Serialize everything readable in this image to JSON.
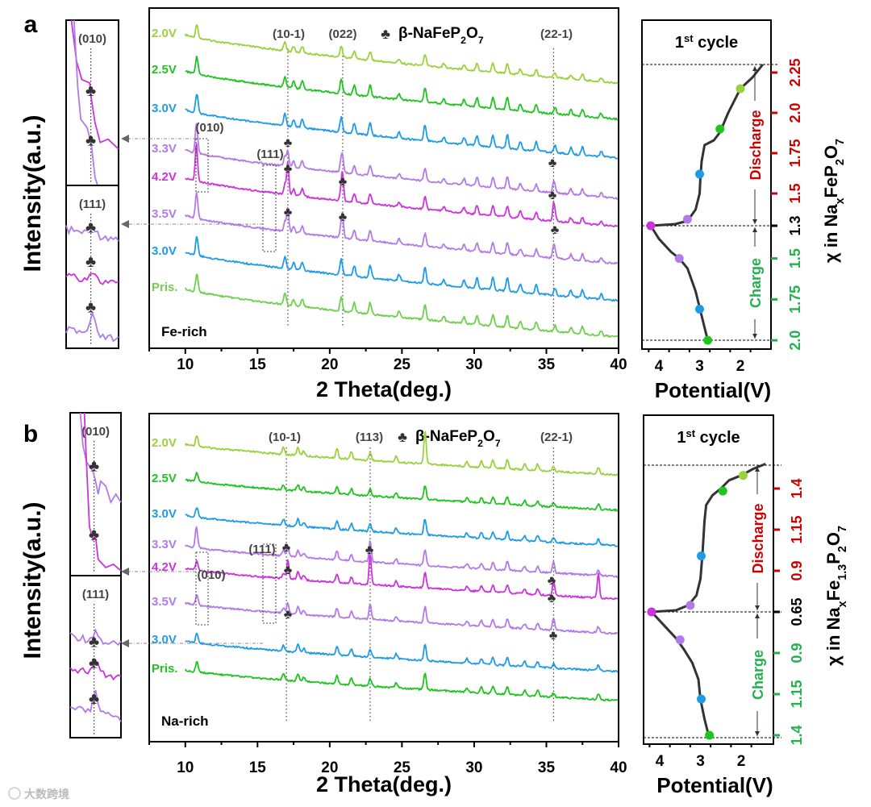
{
  "chart_data": [
    {
      "type": "line",
      "panel_label": "a",
      "title": "",
      "xlabel": "2 Theta(deg.)",
      "ylabel": "Intensity(a.u.)",
      "xlim": [
        7.5,
        40
      ],
      "xticks": [
        "10",
        "15",
        "20",
        "25",
        "30",
        "35",
        "40"
      ],
      "sample_label": "Fe-rich",
      "legend": {
        "symbol": "♣",
        "parts": [
          {
            "t": "β-NaFeP"
          },
          {
            "t": "2",
            "sub": true
          },
          {
            "t": "O"
          },
          {
            "t": "7",
            "sub": true
          }
        ]
      },
      "reflections": [
        {
          "label": "(10-1)",
          "theta": 17.1
        },
        {
          "label": "(022)",
          "theta": 20.9
        },
        {
          "label": "(22-1)",
          "theta": 35.5
        }
      ],
      "box_labels": [
        "(010)",
        "(111)"
      ],
      "base_peaks": [
        [
          10.8,
          22
        ],
        [
          16.9,
          14
        ],
        [
          17.5,
          8
        ],
        [
          18.1,
          10
        ],
        [
          20.8,
          18
        ],
        [
          21.7,
          12
        ],
        [
          22.8,
          14
        ],
        [
          24.8,
          7
        ],
        [
          26.6,
          18
        ],
        [
          27.9,
          6
        ],
        [
          29.3,
          8
        ],
        [
          30.2,
          12
        ],
        [
          31.3,
          14
        ],
        [
          32.3,
          16
        ],
        [
          33.2,
          9
        ],
        [
          34.3,
          10
        ],
        [
          35.6,
          8
        ],
        [
          36.7,
          7
        ],
        [
          37.5,
          9
        ],
        [
          38.8,
          6
        ]
      ],
      "series": [
        {
          "name": "2.0V",
          "color": "#9bd13c",
          "scale": 0.8,
          "extra_peaks": []
        },
        {
          "name": "2.5V",
          "color": "#1fc41f",
          "scale": 1.0,
          "extra_peaks": []
        },
        {
          "name": "3.0V",
          "color": "#1e9be6",
          "scale": 1.1,
          "extra_peaks": []
        },
        {
          "name": "3.3V",
          "color": "#b27ae8",
          "scale": 0.9,
          "extra_peaks": [
            [
              10.75,
              20
            ],
            [
              17.1,
              20
            ],
            [
              20.9,
              14
            ],
            [
              35.5,
              10
            ]
          ]
        },
        {
          "name": "4.2V",
          "color": "#cc33dd",
          "scale": 0.9,
          "extra_peaks": [
            [
              10.75,
              30
            ],
            [
              17.1,
              40
            ],
            [
              20.9,
              28
            ],
            [
              35.5,
              20
            ]
          ]
        },
        {
          "name": "3.5V",
          "color": "#b27ae8",
          "scale": 0.9,
          "extra_peaks": [
            [
              10.75,
              14
            ],
            [
              17.1,
              30
            ],
            [
              20.9,
              22
            ],
            [
              35.5,
              14
            ]
          ]
        },
        {
          "name": "3.0V",
          "color": "#1e9be6",
          "scale": 1.1,
          "extra_peaks": []
        },
        {
          "name": "Pris.",
          "color": "#6fcf4f",
          "scale": 1.0,
          "extra_peaks": []
        }
      ],
      "cycle": {
        "title_parts": [
          "1",
          "st",
          " cycle"
        ],
        "xlabel": "Potential(V)",
        "xticks": [
          "4",
          "3",
          "2"
        ],
        "ylabel_parts": [
          {
            "t": "χ in Na"
          },
          {
            "t": "x",
            "sub": true
          },
          {
            "t": "FeP"
          },
          {
            "t": "2",
            "sub": true
          },
          {
            "t": "O"
          },
          {
            "t": "7",
            "sub": true
          }
        ],
        "discharge_label": "Discharge",
        "charge_label": "Charge",
        "discharge_color": "#cc0000",
        "charge_color": "#22b14c",
        "mid_tick": "1.3",
        "discharge_ticks": [
          "1.5",
          "1.75",
          "2.0",
          "2.25"
        ],
        "charge_ticks": [
          "1.5",
          "1.75",
          "2.0"
        ],
        "discharge_curve": [
          [
            4.2,
            1.3
          ],
          [
            3.6,
            1.31
          ],
          [
            3.3,
            1.33
          ],
          [
            3.1,
            1.4
          ],
          [
            3.0,
            1.5
          ],
          [
            2.98,
            1.6
          ],
          [
            2.95,
            1.7
          ],
          [
            2.88,
            1.8
          ],
          [
            2.65,
            1.83
          ],
          [
            2.5,
            1.88
          ],
          [
            2.3,
            2.0
          ],
          [
            2.1,
            2.1
          ],
          [
            2.0,
            2.15
          ],
          [
            1.7,
            2.22
          ],
          [
            1.45,
            2.3
          ]
        ],
        "charge_curve": [
          [
            4.2,
            1.3
          ],
          [
            4.0,
            1.38
          ],
          [
            3.7,
            1.46
          ],
          [
            3.5,
            1.5
          ],
          [
            3.3,
            1.56
          ],
          [
            3.1,
            1.7
          ],
          [
            3.0,
            1.8
          ],
          [
            2.9,
            1.9
          ],
          [
            2.8,
            2.0
          ]
        ],
        "points": [
          {
            "label": "2.0V",
            "branch": "discharge",
            "V": 2.0,
            "x": 2.15,
            "color": "#9bd13c"
          },
          {
            "label": "2.5V",
            "branch": "discharge",
            "V": 2.5,
            "x": 1.9,
            "color": "#1fc41f"
          },
          {
            "label": "3.0V",
            "branch": "discharge",
            "V": 3.0,
            "x": 1.62,
            "color": "#1e9be6"
          },
          {
            "label": "3.3V",
            "branch": "discharge",
            "V": 3.3,
            "x": 1.34,
            "color": "#b27ae8"
          },
          {
            "label": "4.2V",
            "branch": "discharge",
            "V": 4.2,
            "x": 1.3,
            "color": "#cc33dd"
          },
          {
            "label": "3.5V",
            "branch": "charge",
            "V": 3.5,
            "x": 1.5,
            "color": "#b27ae8"
          },
          {
            "label": "3.0V",
            "branch": "charge",
            "V": 3.0,
            "x": 1.81,
            "color": "#1e9be6"
          },
          {
            "label": "Pris.",
            "branch": "charge",
            "V": 2.8,
            "x": 2.0,
            "color": "#1fc41f"
          }
        ]
      }
    },
    {
      "type": "line",
      "panel_label": "b",
      "title": "",
      "xlabel": "2 Theta(deg.)",
      "ylabel": "Intensity(a.u.)",
      "xlim": [
        7.5,
        40
      ],
      "xticks": [
        "10",
        "15",
        "20",
        "25",
        "30",
        "35",
        "40"
      ],
      "sample_label": "Na-rich",
      "legend": {
        "symbol": "♣",
        "parts": [
          {
            "t": "β-NaFeP"
          },
          {
            "t": "2",
            "sub": true
          },
          {
            "t": "O"
          },
          {
            "t": "7",
            "sub": true
          }
        ]
      },
      "reflections": [
        {
          "label": "(10-1)",
          "theta": 17.0
        },
        {
          "label": "(113)",
          "theta": 22.8
        },
        {
          "label": "(22-1)",
          "theta": 35.5
        }
      ],
      "box_labels": [
        "(010)",
        "(111)"
      ],
      "base_peaks": [
        [
          10.8,
          14
        ],
        [
          16.8,
          8
        ],
        [
          17.8,
          10
        ],
        [
          18.2,
          6
        ],
        [
          20.5,
          12
        ],
        [
          21.5,
          9
        ],
        [
          22.8,
          10
        ],
        [
          24.6,
          7
        ],
        [
          26.6,
          22
        ],
        [
          29.5,
          6
        ],
        [
          30.5,
          8
        ],
        [
          31.3,
          10
        ],
        [
          32.3,
          12
        ],
        [
          33.5,
          7
        ],
        [
          34.4,
          8
        ],
        [
          35.5,
          6
        ],
        [
          38.6,
          8
        ]
      ],
      "series": [
        {
          "name": "2.0V",
          "color": "#9bd13c",
          "scale": 1.0,
          "extra_peaks": [
            [
              26.6,
              20
            ]
          ]
        },
        {
          "name": "2.5V",
          "color": "#1fc41f",
          "scale": 0.8,
          "extra_peaks": []
        },
        {
          "name": "3.0V",
          "color": "#1e9be6",
          "scale": 0.9,
          "extra_peaks": []
        },
        {
          "name": "3.3V",
          "color": "#b27ae8",
          "scale": 0.9,
          "extra_peaks": [
            [
              10.75,
              16
            ],
            [
              17.1,
              14
            ],
            [
              22.8,
              18
            ],
            [
              35.5,
              8
            ]
          ]
        },
        {
          "name": "4.2V",
          "color": "#cc33dd",
          "scale": 0.9,
          "extra_peaks": [
            [
              17.1,
              24
            ],
            [
              22.8,
              30
            ],
            [
              35.5,
              14
            ],
            [
              38.6,
              24
            ]
          ]
        },
        {
          "name": "3.5V",
          "color": "#b27ae8",
          "scale": 0.9,
          "extra_peaks": [
            [
              17.1,
              14
            ],
            [
              22.8,
              10
            ],
            [
              35.5,
              10
            ]
          ]
        },
        {
          "name": "3.0V",
          "color": "#1e9be6",
          "scale": 0.9,
          "extra_peaks": []
        },
        {
          "name": "Pris.",
          "color": "#1fc41f",
          "scale": 0.9,
          "extra_peaks": []
        }
      ],
      "cycle": {
        "title_parts": [
          "1",
          "st",
          " cycle"
        ],
        "xlabel": "Potential(V)",
        "xticks": [
          "4",
          "3",
          "2"
        ],
        "ylabel_parts": [
          {
            "t": "χ in Na"
          },
          {
            "t": "x",
            "sub": true
          },
          {
            "t": "Fe"
          },
          {
            "t": "1.3",
            "sub": true
          },
          {
            "t": "P"
          },
          {
            "t": "2",
            "sub": true
          },
          {
            "t": "O"
          },
          {
            "t": "7",
            "sub": true
          }
        ],
        "discharge_label": "Discharge",
        "charge_label": "Charge",
        "discharge_color": "#cc0000",
        "charge_color": "#22b14c",
        "mid_tick": "0.65",
        "discharge_ticks": [
          "0.9",
          "1.15",
          "1.4"
        ],
        "charge_ticks": [
          "0.9",
          "1.15",
          "1.4"
        ],
        "discharge_curve": [
          [
            4.2,
            0.65
          ],
          [
            3.6,
            0.66
          ],
          [
            3.3,
            0.69
          ],
          [
            3.1,
            0.75
          ],
          [
            3.0,
            0.85
          ],
          [
            2.95,
            1.0
          ],
          [
            2.9,
            1.2
          ],
          [
            2.86,
            1.3
          ],
          [
            2.7,
            1.36
          ],
          [
            2.5,
            1.4
          ],
          [
            2.3,
            1.45
          ],
          [
            2.0,
            1.48
          ],
          [
            1.7,
            1.52
          ],
          [
            1.4,
            1.55
          ]
        ],
        "charge_curve": [
          [
            4.2,
            0.65
          ],
          [
            3.9,
            0.73
          ],
          [
            3.6,
            0.81
          ],
          [
            3.4,
            0.88
          ],
          [
            3.2,
            0.96
          ],
          [
            3.05,
            1.06
          ],
          [
            3.0,
            1.18
          ],
          [
            2.9,
            1.3
          ],
          [
            2.8,
            1.4
          ]
        ],
        "points": [
          {
            "label": "2.0V",
            "branch": "discharge",
            "V": 1.95,
            "x": 1.48,
            "color": "#9bd13c"
          },
          {
            "label": "2.5V",
            "branch": "discharge",
            "V": 2.45,
            "x": 1.385,
            "color": "#1fc41f"
          },
          {
            "label": "3.0V",
            "branch": "discharge",
            "V": 2.98,
            "x": 0.99,
            "color": "#1e9be6"
          },
          {
            "label": "3.3V",
            "branch": "discharge",
            "V": 3.25,
            "x": 0.69,
            "color": "#b27ae8"
          },
          {
            "label": "4.2V",
            "branch": "discharge",
            "V": 4.2,
            "x": 0.65,
            "color": "#cc33dd"
          },
          {
            "label": "3.5V",
            "branch": "charge",
            "V": 3.5,
            "x": 0.82,
            "color": "#b27ae8"
          },
          {
            "label": "3.0V",
            "branch": "charge",
            "V": 2.98,
            "x": 1.18,
            "color": "#1e9be6"
          },
          {
            "label": "Pris.",
            "branch": "charge",
            "V": 2.78,
            "x": 1.4,
            "color": "#1fc41f"
          }
        ]
      }
    }
  ],
  "watermark": "大数跨境"
}
